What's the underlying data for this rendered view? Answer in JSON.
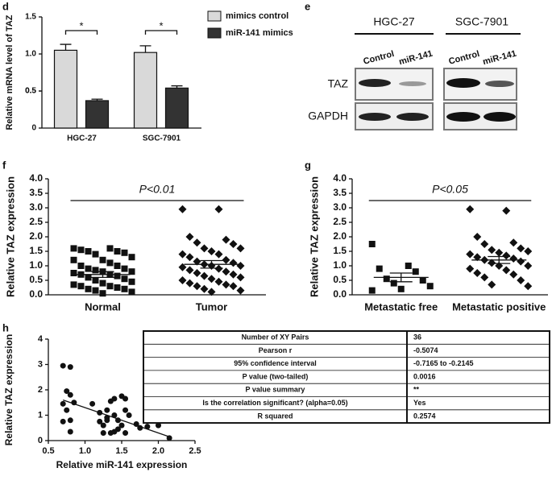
{
  "chart_data": [
    {
      "panel": "d",
      "type": "bar",
      "ylabel": "Relative mRNA level of TAZ",
      "categories": [
        "HGC-27",
        "SGC-7901"
      ],
      "series": [
        {
          "name": "mimics control",
          "color": "#d9d9d9",
          "values": [
            1.05,
            1.02
          ],
          "errors": [
            0.08,
            0.09
          ]
        },
        {
          "name": "miR-141 mimics",
          "color": "#333333",
          "values": [
            0.37,
            0.54
          ],
          "errors": [
            0.02,
            0.03
          ]
        }
      ],
      "annotations": [
        "*",
        "*"
      ],
      "ylim": [
        0,
        1.5
      ],
      "yticks": [
        0,
        0.5,
        {
          "value": 1,
          "label": "1.0"
        },
        0.5,
        {
          "value": 1.5,
          "label": "1.5"
        }
      ]
    },
    {
      "panel": "f",
      "type": "dot",
      "ylabel": "Relative TAZ expression",
      "categories": [
        "Normal",
        "Tumor"
      ],
      "markers": [
        "square",
        "diamond"
      ],
      "values": [
        [
          1.6,
          1.6,
          1.55,
          1.5,
          1.5,
          1.45,
          1.4,
          1.3,
          1.2,
          1.2,
          1.1,
          1.0,
          1.0,
          0.9,
          0.9,
          0.85,
          0.8,
          0.8,
          0.75,
          0.7,
          0.7,
          0.65,
          0.6,
          0.55,
          0.5,
          0.45,
          0.4,
          0.35,
          0.3,
          0.3,
          0.25,
          0.2,
          0.2,
          0.15,
          0.1,
          0.05
        ],
        [
          2.95,
          2.95,
          2.0,
          1.9,
          1.8,
          1.75,
          1.6,
          1.6,
          1.5,
          1.4,
          1.4,
          1.3,
          1.2,
          1.15,
          1.1,
          1.05,
          1.0,
          1.0,
          0.95,
          0.9,
          0.85,
          0.8,
          0.75,
          0.7,
          0.65,
          0.6,
          0.55,
          0.5,
          0.45,
          0.4,
          0.35,
          0.3,
          0.3,
          0.2,
          0.15,
          0.1
        ]
      ],
      "means": [
        0.7,
        1.05
      ],
      "sems": [
        0.1,
        0.13
      ],
      "annotation": "P<0.01",
      "ylim": [
        0,
        4
      ],
      "yticks": [
        {
          "value": 0,
          "label": "0.0"
        },
        0.5,
        {
          "value": 1,
          "label": "1.0"
        },
        1.5,
        {
          "value": 2,
          "label": "2.0"
        },
        2.5,
        {
          "value": 3,
          "label": "3.0"
        },
        3.5,
        {
          "value": 4,
          "label": "4.0"
        }
      ]
    },
    {
      "panel": "g",
      "type": "dot",
      "ylabel": "Relative TAZ expression",
      "categories": [
        "Metastatic free",
        "Metastatic positive"
      ],
      "markers": [
        "square",
        "diamond"
      ],
      "values": [
        [
          1.75,
          1.0,
          0.9,
          0.8,
          0.55,
          0.5,
          0.4,
          0.3,
          0.2,
          0.15
        ],
        [
          2.95,
          2.9,
          2.0,
          1.8,
          1.75,
          1.6,
          1.55,
          1.5,
          1.45,
          1.4,
          1.35,
          1.3,
          1.25,
          1.2,
          1.15,
          1.1,
          1.0,
          1.0,
          0.9,
          0.85,
          0.75,
          0.7,
          0.6,
          0.5,
          0.35,
          0.3
        ]
      ],
      "means": [
        0.6,
        1.2
      ],
      "sems": [
        0.15,
        0.12
      ],
      "annotation": "P<0.05",
      "ylim": [
        0,
        4
      ],
      "yticks": [
        {
          "value": 0,
          "label": "0.0"
        },
        0.5,
        {
          "value": 1,
          "label": "1.0"
        },
        1.5,
        {
          "value": 2,
          "label": "2.0"
        },
        2.5,
        {
          "value": 3,
          "label": "3.0"
        },
        3.5,
        {
          "value": 4,
          "label": "4.0"
        }
      ]
    },
    {
      "panel": "h",
      "type": "scatter",
      "xlabel": "Relative miR-141 expression",
      "ylabel": "Relative TAZ expression",
      "x": [
        0.7,
        0.8,
        0.75,
        0.8,
        0.85,
        0.7,
        0.75,
        0.8,
        0.7,
        0.8,
        1.1,
        1.2,
        1.2,
        1.25,
        1.3,
        1.3,
        1.35,
        1.35,
        1.4,
        1.4,
        1.45,
        1.45,
        1.5,
        1.5,
        1.55,
        1.55,
        1.55,
        1.4,
        1.6,
        1.7,
        1.75,
        1.85,
        2.0,
        2.15,
        1.3,
        1.25
      ],
      "y": [
        2.95,
        2.9,
        1.95,
        1.8,
        1.5,
        1.45,
        1.2,
        0.8,
        0.75,
        0.35,
        1.45,
        1.1,
        0.75,
        0.6,
        0.8,
        1.2,
        0.3,
        1.55,
        1.65,
        1.0,
        0.8,
        0.45,
        1.75,
        0.6,
        1.65,
        1.2,
        0.3,
        0.35,
        1.0,
        0.65,
        0.5,
        0.55,
        0.6,
        0.1,
        0.9,
        0.3
      ],
      "fit": {
        "x": [
          0.7,
          2.15
        ],
        "y": [
          1.6,
          0.15
        ]
      },
      "xlim": [
        0.5,
        2.5
      ],
      "xticks": [
        0.5,
        {
          "value": 1,
          "label": "1.0"
        },
        1.5,
        {
          "value": 2,
          "label": "2.0"
        },
        2.5
      ],
      "ylim": [
        0,
        4
      ],
      "yticks": [
        0,
        1,
        2,
        3,
        4
      ]
    }
  ],
  "blot": {
    "panel": "e",
    "cell_lines": [
      "HGC-27",
      "SGC-7901"
    ],
    "lanes": [
      "Control",
      "miR-141",
      "Control",
      "miR-141"
    ],
    "proteins": [
      "TAZ",
      "GAPDH"
    ]
  },
  "table": {
    "rows": [
      [
        "Number of XY Pairs",
        "36"
      ],
      [
        "Pearson r",
        "-0.5074"
      ],
      [
        "95% confidence interval",
        "-0.7165 to -0.2145"
      ],
      [
        "P value (two-tailed)",
        "0.0016"
      ],
      [
        "P value summary",
        "**"
      ],
      [
        "Is the correlation significant? (alpha=0.05)",
        "Yes"
      ],
      [
        "R squared",
        "0.2574"
      ]
    ]
  }
}
